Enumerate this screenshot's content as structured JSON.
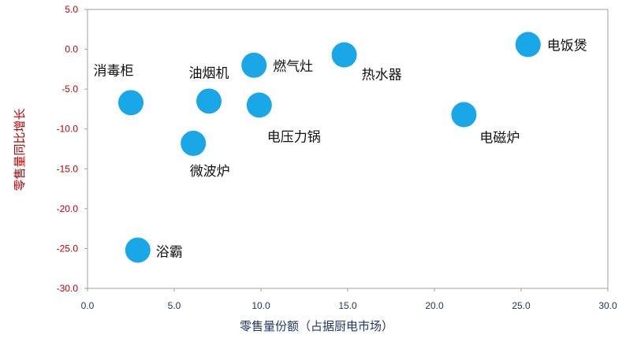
{
  "chart_data": {
    "type": "scatter",
    "xlabel": "零售量份额（占据厨电市场）",
    "ylabel": "零售量同比增长",
    "xlim": [
      0,
      30
    ],
    "ylim": [
      -30,
      5
    ],
    "x_ticks": [
      "0.0",
      "5.0",
      "10.0",
      "15.0",
      "20.0",
      "25.0",
      "30.0"
    ],
    "y_ticks": [
      "5.0",
      "0.0",
      "-5.0",
      "-10.0",
      "-15.0",
      "-20.0",
      "-25.0",
      "-30.0"
    ],
    "grid": false,
    "legend": "none",
    "marker_color": "#1aa7e8",
    "points": [
      {
        "label": "消毒柜",
        "x": 2.5,
        "y": -6.7
      },
      {
        "label": "油烟机",
        "x": 7.0,
        "y": -6.5
      },
      {
        "label": "燃气灶",
        "x": 9.6,
        "y": -2.0
      },
      {
        "label": "电压力锅",
        "x": 9.9,
        "y": -7.0
      },
      {
        "label": "微波炉",
        "x": 6.1,
        "y": -11.8
      },
      {
        "label": "热水器",
        "x": 14.8,
        "y": -0.7
      },
      {
        "label": "电饭煲",
        "x": 25.4,
        "y": 0.6
      },
      {
        "label": "电磁炉",
        "x": 21.7,
        "y": -8.2
      },
      {
        "label": "浴霸",
        "x": 2.9,
        "y": -25.2
      }
    ]
  }
}
